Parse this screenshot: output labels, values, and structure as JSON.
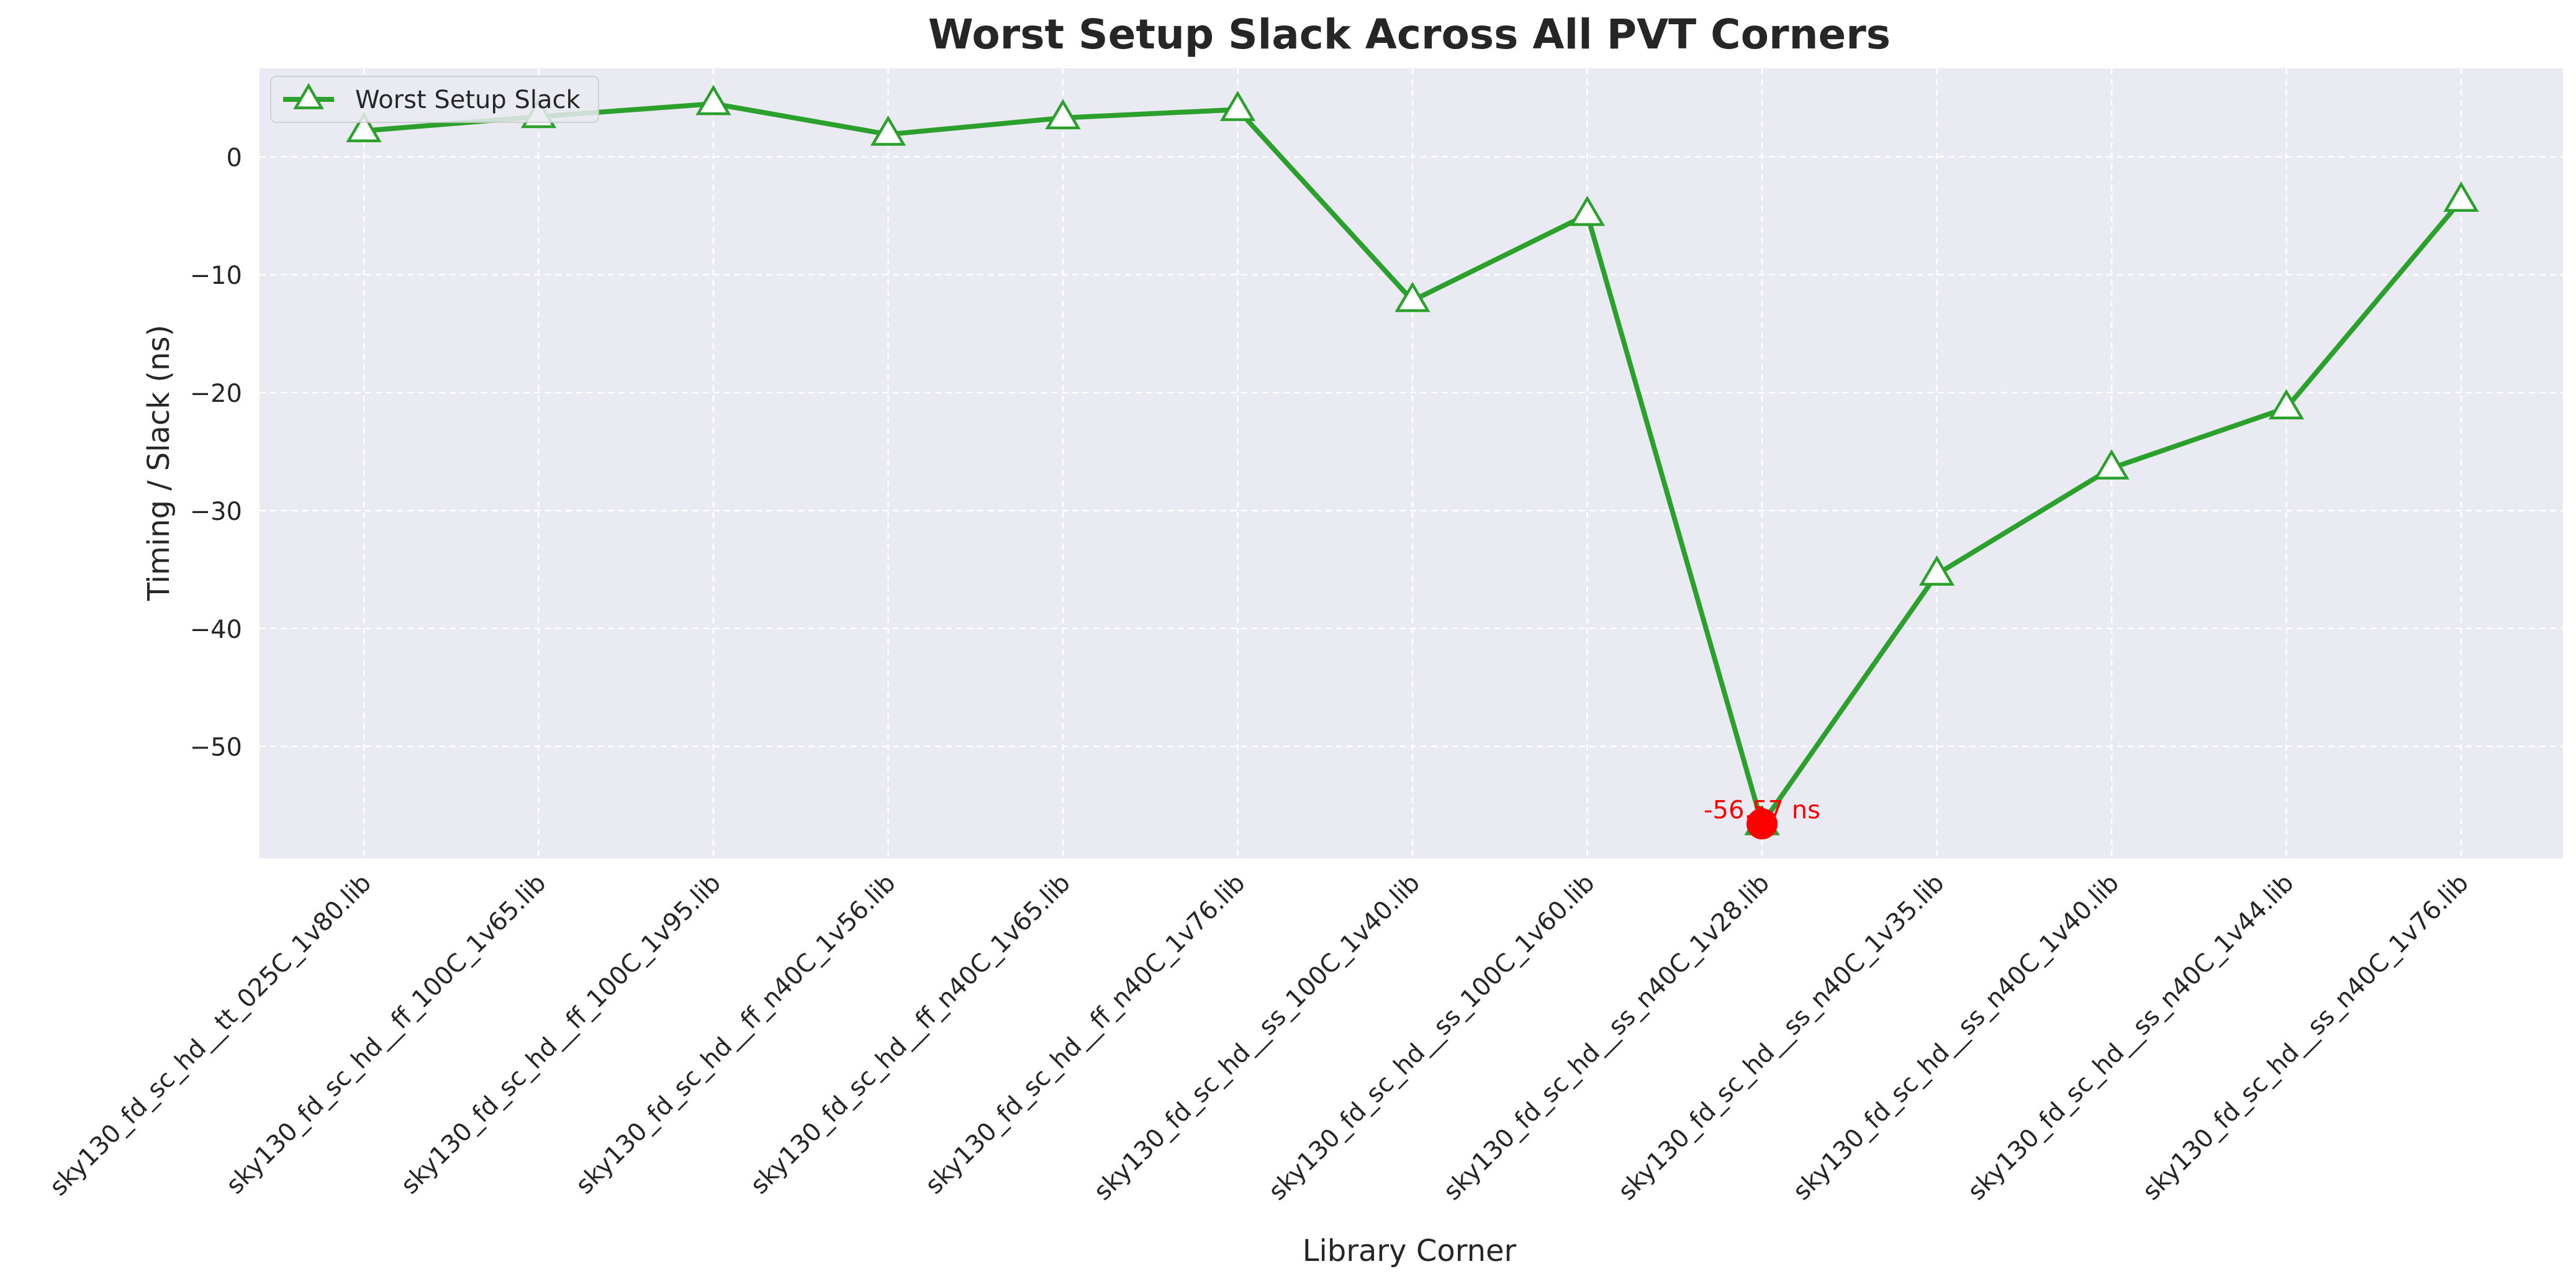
{
  "chart_data": {
    "type": "line",
    "title": "Worst Setup Slack Across All PVT Corners",
    "xlabel": "Library Corner",
    "ylabel": "Timing / Slack (ns)",
    "ylim": [
      -59.5,
      7.5
    ],
    "yticks": [
      0,
      -10,
      -20,
      -30,
      -40,
      -50
    ],
    "ytick_labels": [
      "0",
      "−10",
      "−20",
      "−30",
      "−40",
      "−50"
    ],
    "grid": true,
    "legend_position": "top-left",
    "categories": [
      "sky130_fd_sc_hd__tt_025C_1v80.lib",
      "sky130_fd_sc_hd__ff_100C_1v65.lib",
      "sky130_fd_sc_hd__ff_100C_1v95.lib",
      "sky130_fd_sc_hd__ff_n40C_1v56.lib",
      "sky130_fd_sc_hd__ff_n40C_1v65.lib",
      "sky130_fd_sc_hd__ff_n40C_1v76.lib",
      "sky130_fd_sc_hd__ss_100C_1v40.lib",
      "sky130_fd_sc_hd__ss_100C_1v60.lib",
      "sky130_fd_sc_hd__ss_n40C_1v28.lib",
      "sky130_fd_sc_hd__ss_n40C_1v35.lib",
      "sky130_fd_sc_hd__ss_n40C_1v40.lib",
      "sky130_fd_sc_hd__ss_n40C_1v44.lib",
      "sky130_fd_sc_hd__ss_n40C_1v76.lib"
    ],
    "series": [
      {
        "name": "Worst Setup Slack",
        "color": "#2ca02c",
        "marker": "triangle-up-icon",
        "values": [
          2.2,
          3.4,
          4.5,
          1.9,
          3.3,
          4.0,
          -12.2,
          -4.9,
          -56.57,
          -35.4,
          -26.4,
          -21.3,
          -3.7
        ]
      }
    ],
    "annotations": [
      {
        "label": "-56.57 ns",
        "category_index": 8,
        "value": -56.57,
        "color": "#ff0000"
      }
    ],
    "colors": {
      "plot_background": "#eaeaf2",
      "grid": "#ffffff",
      "line": "#2ca02c",
      "highlight": "#ff0000",
      "text": "#262626"
    }
  }
}
